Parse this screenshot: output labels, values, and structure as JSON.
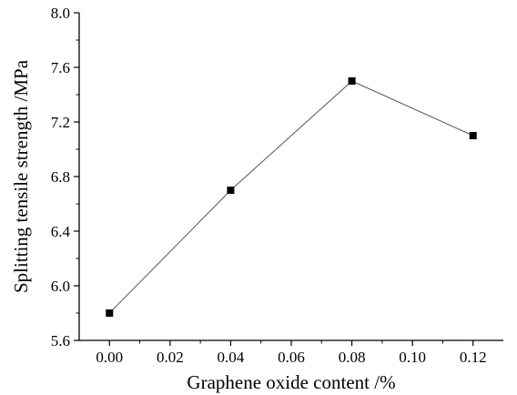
{
  "chart_data": {
    "type": "line",
    "title": "",
    "xlabel": "Graphene oxide content /%",
    "ylabel": "Splitting tensile strength /MPa",
    "xlim": [
      -0.01,
      0.13
    ],
    "ylim": [
      5.6,
      8.0
    ],
    "xticks": [
      0.0,
      0.02,
      0.04,
      0.06,
      0.08,
      0.1,
      0.12
    ],
    "xtick_labels": [
      "0.00",
      "0.02",
      "0.04",
      "0.06",
      "0.08",
      "0.10",
      "0.12"
    ],
    "yticks": [
      5.6,
      6.0,
      6.4,
      6.8,
      7.2,
      7.6,
      8.0
    ],
    "ytick_labels": [
      "5.6",
      "6.0",
      "6.4",
      "6.8",
      "7.2",
      "7.6",
      "8.0"
    ],
    "grid": false,
    "series": [
      {
        "marker": "square",
        "color": "#000000",
        "x": [
          0.0,
          0.04,
          0.08,
          0.12
        ],
        "y": [
          5.8,
          6.7,
          7.5,
          7.1
        ]
      }
    ]
  }
}
